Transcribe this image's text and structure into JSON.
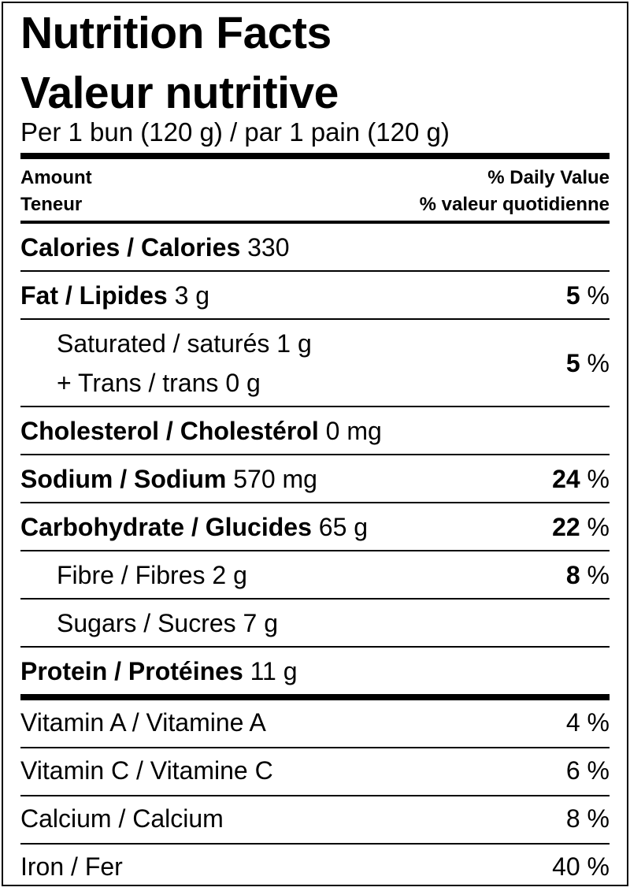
{
  "header": {
    "title": "Nutrition Facts",
    "title_fr": "Valeur nutritive",
    "serving": "Per 1 bun (120 g) / par 1 pain (120 g)"
  },
  "columns": {
    "amount": "Amount",
    "amount_fr": "Teneur",
    "dv": "% Daily Value",
    "dv_fr": "% valeur quotidienne"
  },
  "nutrients": [
    {
      "lines": [
        {
          "label": "Calories / Calories",
          "amount": "330"
        }
      ]
    },
    {
      "lines": [
        {
          "label": "Fat / Lipides",
          "amount": "3 g"
        }
      ],
      "dv": 5,
      "unit": "%"
    },
    {
      "indent": true,
      "lines": [
        {
          "label": "Saturated / saturés",
          "amount": "1 g"
        },
        {
          "label": "+ Trans / trans",
          "amount": "0 g"
        }
      ],
      "dv": 5,
      "unit": "%"
    },
    {
      "lines": [
        {
          "label": "Cholesterol / Cholestérol",
          "amount": "0 mg"
        }
      ]
    },
    {
      "lines": [
        {
          "label": "Sodium / Sodium",
          "amount": "570 mg"
        }
      ],
      "dv": 24,
      "unit": "%"
    },
    {
      "lines": [
        {
          "label": "Carbohydrate / Glucides",
          "amount": "65 g"
        }
      ],
      "dv": 22,
      "unit": "%"
    },
    {
      "indent": true,
      "lines": [
        {
          "label": "Fibre / Fibres",
          "amount": "2 g"
        }
      ],
      "dv": 8,
      "unit": "%"
    },
    {
      "indent": true,
      "lines": [
        {
          "label": "Sugars / Sucres",
          "amount": "7 g"
        }
      ]
    },
    {
      "lines": [
        {
          "label": "Protein / Protéines",
          "amount": "11 g"
        }
      ]
    }
  ],
  "vitamins": [
    {
      "label": "Vitamin A / Vitamine A",
      "dv": 4,
      "unit": "%"
    },
    {
      "label": "Vitamin C / Vitamine C",
      "dv": 6,
      "unit": "%"
    },
    {
      "label": "Calcium / Calcium",
      "dv": 8,
      "unit": "%"
    },
    {
      "label": "Iron / Fer",
      "dv": 40,
      "unit": "%"
    }
  ]
}
